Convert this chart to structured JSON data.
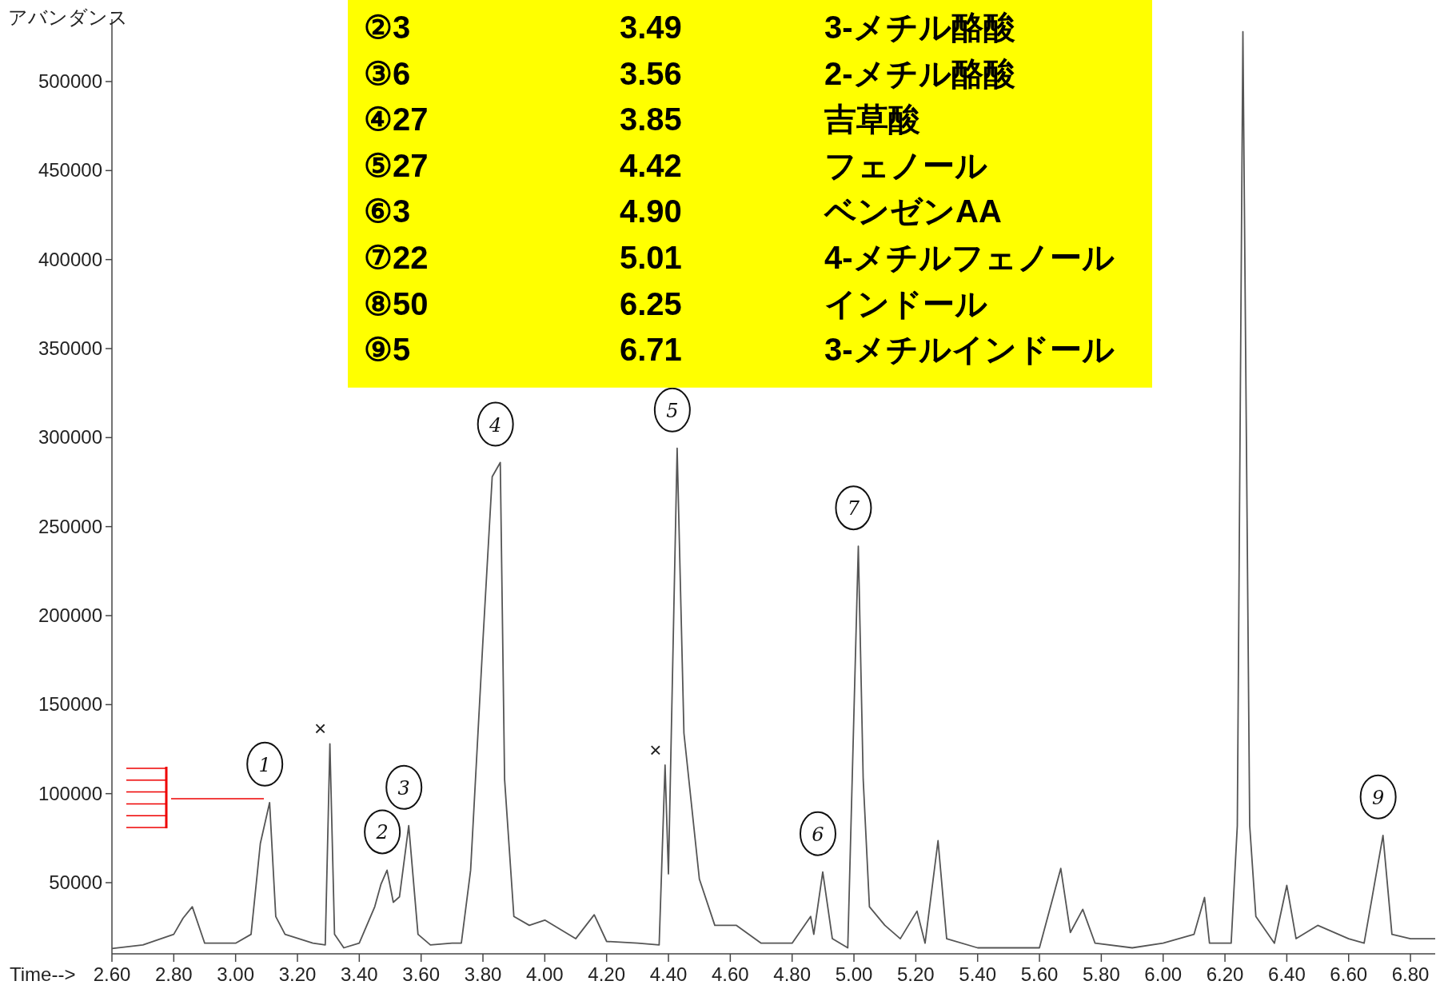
{
  "chart_data": {
    "type": "line",
    "xlabel": "Time-->",
    "ylabel": "アバンダンス",
    "xlim": [
      2.6,
      6.88
    ],
    "ylim": [
      10000,
      535000
    ],
    "xticks": [
      {
        "value": 2.6,
        "label": "2.60"
      },
      {
        "value": 2.8,
        "label": "2.80"
      },
      {
        "value": 3.0,
        "label": "3.00"
      },
      {
        "value": 3.2,
        "label": "3.20"
      },
      {
        "value": 3.4,
        "label": "3.40"
      },
      {
        "value": 3.6,
        "label": "3.60"
      },
      {
        "value": 3.8,
        "label": "3.80"
      },
      {
        "value": 4.0,
        "label": "4.00"
      },
      {
        "value": 4.2,
        "label": "4.20"
      },
      {
        "value": 4.4,
        "label": "4.40"
      },
      {
        "value": 4.6,
        "label": "4.60"
      },
      {
        "value": 4.8,
        "label": "4.80"
      },
      {
        "value": 5.0,
        "label": "5.00"
      },
      {
        "value": 5.2,
        "label": "5.20"
      },
      {
        "value": 5.4,
        "label": "5.40"
      },
      {
        "value": 5.6,
        "label": "5.60"
      },
      {
        "value": 5.8,
        "label": "5.80"
      },
      {
        "value": 6.0,
        "label": "6.00"
      },
      {
        "value": 6.2,
        "label": "6.20"
      },
      {
        "value": 6.4,
        "label": "6.40"
      },
      {
        "value": 6.6,
        "label": "6.60"
      },
      {
        "value": 6.8,
        "label": "6.80"
      }
    ],
    "yticks": [
      50000,
      100000,
      150000,
      200000,
      250000,
      300000,
      350000,
      400000,
      450000,
      500000
    ],
    "marker": "none",
    "line_style": "solid",
    "series": [
      {
        "color": "#555555",
        "x": [
          2.6,
          2.7,
          2.8,
          2.83,
          2.86,
          2.9,
          3.0,
          3.05,
          3.08,
          3.11,
          3.13,
          3.16,
          3.25,
          3.29,
          3.305,
          3.32,
          3.35,
          3.4,
          3.45,
          3.47,
          3.49,
          3.51,
          3.53,
          3.56,
          3.59,
          3.63,
          3.7,
          3.73,
          3.76,
          3.8,
          3.83,
          3.856,
          3.87,
          3.9,
          3.95,
          4.0,
          4.1,
          4.16,
          4.2,
          4.3,
          4.37,
          4.389,
          4.4,
          4.428,
          4.45,
          4.5,
          4.55,
          4.62,
          4.7,
          4.8,
          4.86,
          4.87,
          4.899,
          4.93,
          4.98,
          5.014,
          5.03,
          5.05,
          5.1,
          5.15,
          5.204,
          5.23,
          5.272,
          5.3,
          5.4,
          5.5,
          5.6,
          5.669,
          5.7,
          5.74,
          5.78,
          5.9,
          6.0,
          6.1,
          6.134,
          6.15,
          6.22,
          6.24,
          6.258,
          6.28,
          6.3,
          6.36,
          6.4,
          6.43,
          6.5,
          6.6,
          6.65,
          6.711,
          6.74,
          6.8,
          6.88
        ],
        "values": [
          13000,
          15000,
          21000,
          30000,
          36500,
          16000,
          16000,
          21000,
          72000,
          95000,
          31000,
          21000,
          16000,
          15000,
          128000,
          21000,
          13400,
          16000,
          36500,
          49000,
          57000,
          39000,
          42000,
          82000,
          21000,
          15000,
          16000,
          16000,
          57000,
          186000,
          278000,
          286000,
          108000,
          31000,
          26000,
          29000,
          18500,
          32000,
          17000,
          16000,
          15000,
          116000,
          55000,
          294000,
          134000,
          52000,
          26000,
          26000,
          16000,
          16000,
          31000,
          21000,
          56000,
          18500,
          13400,
          239000,
          108000,
          36500,
          26000,
          18500,
          34000,
          16000,
          73600,
          18500,
          13400,
          13400,
          13400,
          58000,
          22000,
          35000,
          16000,
          13400,
          16000,
          21000,
          41700,
          16000,
          16000,
          82000,
          528000,
          82000,
          31000,
          16000,
          48500,
          18500,
          26000,
          18500,
          16000,
          76600,
          21000,
          18500,
          18500
        ]
      }
    ],
    "annotations": [
      {
        "text": "1",
        "x": 3.11,
        "y": 95000
      },
      {
        "text": "2",
        "x": 3.49,
        "y": 57000
      },
      {
        "text": "3",
        "x": 3.56,
        "y": 82000
      },
      {
        "text": "4",
        "x": 3.856,
        "y": 286000
      },
      {
        "text": "5",
        "x": 4.428,
        "y": 294000
      },
      {
        "text": "6",
        "x": 4.899,
        "y": 56000
      },
      {
        "text": "7",
        "x": 5.014,
        "y": 239000
      },
      {
        "text": "9",
        "x": 6.711,
        "y": 76600
      },
      {
        "text": "×",
        "x": 3.305,
        "y": 128000
      },
      {
        "text": "×",
        "x": 4.389,
        "y": 116000
      },
      "②3",
      "3.49",
      "3-メチル酪酸",
      "③6",
      "3.56",
      "2-メチル酪酸",
      "④27",
      "3.85",
      "吉草酸",
      "⑤27",
      "4.42",
      "フェノール",
      "⑥3",
      "4.90",
      "ベンゼンAA",
      "⑦22",
      "5.01",
      "4-メチルフェノール",
      "⑧50",
      "6.25",
      "インドール",
      "⑨5",
      "6.71",
      "3-メチルインドール"
    ]
  }
}
